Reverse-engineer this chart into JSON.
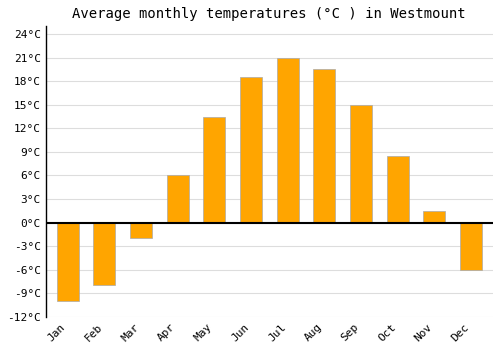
{
  "months": [
    "Jan",
    "Feb",
    "Mar",
    "Apr",
    "May",
    "Jun",
    "Jul",
    "Aug",
    "Sep",
    "Oct",
    "Nov",
    "Dec"
  ],
  "values": [
    -10,
    -8,
    -2,
    6,
    13.5,
    18.5,
    21,
    19.5,
    15,
    8.5,
    1.5,
    -6
  ],
  "bar_color": "#FFA500",
  "bar_edge_color": "#aaaaaa",
  "title": "Average monthly temperatures (°C ) in Westmount",
  "ylim": [
    -12,
    25
  ],
  "yticks": [
    -12,
    -9,
    -6,
    -3,
    0,
    3,
    6,
    9,
    12,
    15,
    18,
    21,
    24
  ],
  "ytick_labels": [
    "-12°C",
    "-9°C",
    "-6°C",
    "-3°C",
    "0°C",
    "3°C",
    "6°C",
    "9°C",
    "12°C",
    "15°C",
    "18°C",
    "21°C",
    "24°C"
  ],
  "background_color": "#ffffff",
  "grid_color": "#dddddd",
  "zero_line_color": "#000000",
  "title_fontsize": 10,
  "tick_fontsize": 8,
  "bar_width": 0.6
}
